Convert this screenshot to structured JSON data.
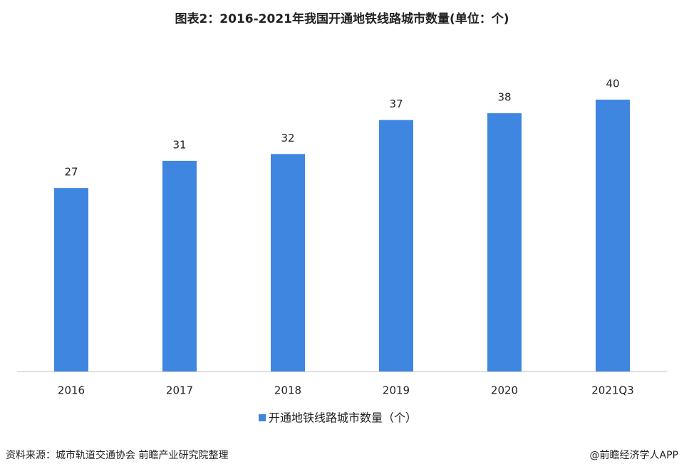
{
  "chart_data": {
    "type": "bar",
    "title": "图表2：2016-2021年我国开通地铁线路城市数量(单位：个)",
    "categories": [
      "2016",
      "2017",
      "2018",
      "2019",
      "2020",
      "2021Q3"
    ],
    "series": [
      {
        "name": "开通地铁线路城市数量（个）",
        "color": "#3f86e0",
        "values": [
          27,
          31,
          32,
          37,
          38,
          40
        ]
      }
    ],
    "ylim": [
      0,
      40
    ],
    "legend": "bottom",
    "source": "资料来源：城市轨道交通协会 前瞻产业研究院整理",
    "credit": "@前瞻经济学人APP"
  }
}
